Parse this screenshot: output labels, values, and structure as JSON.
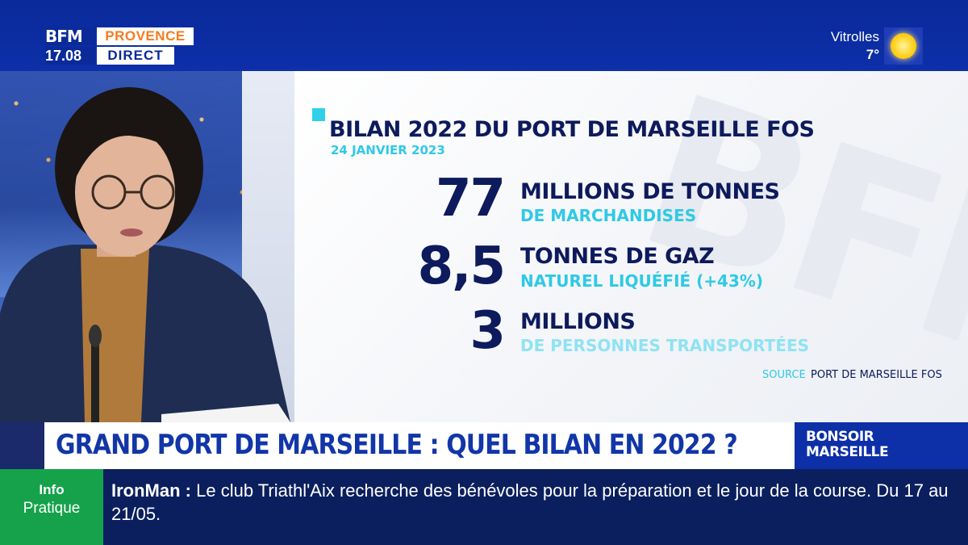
{
  "header": {
    "channel_logo": "BFM",
    "time": "17.08",
    "region": "PROVENCE",
    "live": "DIRECT",
    "weather": {
      "city": "Vitrolles",
      "temperature": "7°",
      "icon": "sun-icon"
    }
  },
  "infographic": {
    "title": "BILAN 2022 DU PORT DE MARSEILLE FOS",
    "date": "24 JANVIER 2023",
    "stats": [
      {
        "number": "77",
        "main": "MILLIONS DE TONNES",
        "sub": "DE MARCHANDISES"
      },
      {
        "number": "8,5",
        "main": "TONNES DE GAZ",
        "sub": "NATUREL LIQUÉFIÉ (+43%)"
      },
      {
        "number": "3",
        "main": "MILLIONS",
        "sub": "DE PERSONNES TRANSPORTÉES"
      }
    ],
    "source_label": "SOURCE",
    "source_value": "PORT DE MARSEILLE FOS"
  },
  "headline": "GRAND PORT DE MARSEILLE : QUEL BILAN EN 2022 ?",
  "show": "BONSOIR\nMARSEILLE",
  "ticker": {
    "tag_line1": "Info",
    "tag_line2": "Pratique",
    "topic": "IronMan",
    "separator": " :  ",
    "text": "Le club Triathl'Aix recherche des bénévoles pour la préparation et le jour de la course. Du 17 au 21/05."
  },
  "colors": {
    "brand_blue": "#0d2fa8",
    "navy_text": "#0d1a5c",
    "accent_cyan": "#2fc9e6",
    "ticker_green": "#15a24b",
    "region_orange": "#f47b20"
  }
}
